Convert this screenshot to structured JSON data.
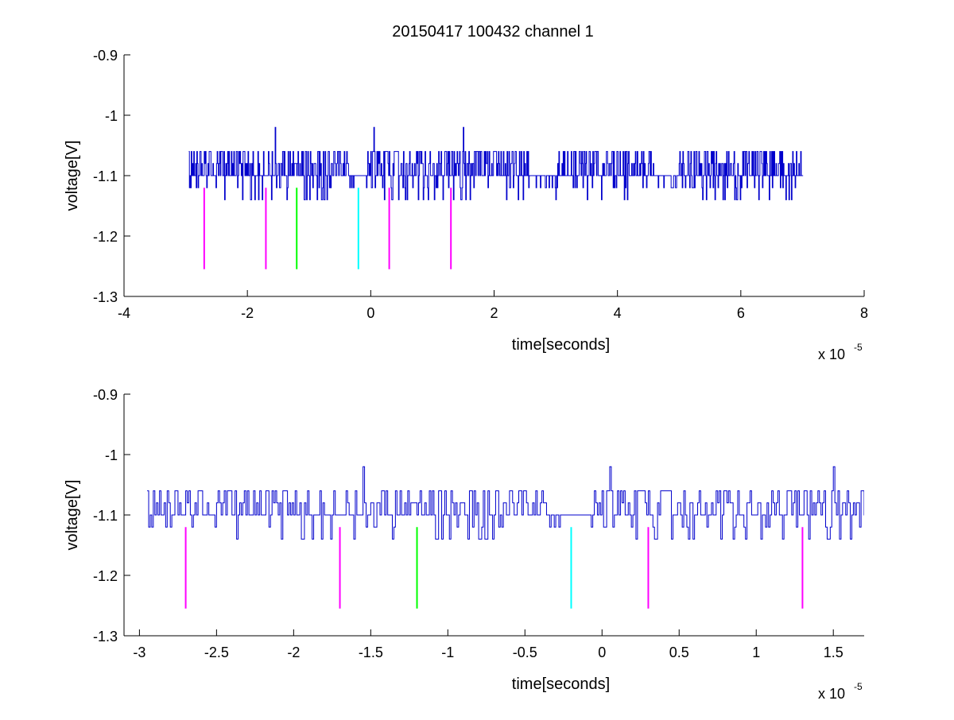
{
  "figure": {
    "title": "20150417 100432 channel 1"
  },
  "chart_data": [
    {
      "type": "line",
      "title": "20150417 100432 channel 1",
      "xlabel": "time[seconds]",
      "ylabel": "voltage[V]",
      "x_multiplier": {
        "base": "x 10",
        "exponent": "-5"
      },
      "xlim": [
        -4,
        8
      ],
      "ylim": [
        -1.3,
        -0.9
      ],
      "xticks": [
        -4,
        -2,
        0,
        2,
        4,
        6,
        8
      ],
      "xtick_labels": [
        "-4",
        "-2",
        "0",
        "2",
        "4",
        "6",
        "8"
      ],
      "yticks": [
        -1.3,
        -1.2,
        -1.1,
        -1.0,
        -0.9
      ],
      "ytick_labels": [
        "-1.3",
        "-1.2",
        "-1.1",
        "-1",
        "-0.9"
      ],
      "grid": false,
      "trace": {
        "color": "#0000cc",
        "x_start": -2.95,
        "x_end": 7.0,
        "levels": [
          -1.06,
          -1.08,
          -1.1,
          -1.12,
          -1.14
        ],
        "baseline": -1.1,
        "spikes": [
          {
            "x": -1.55,
            "y": -1.02
          },
          {
            "x": 0.05,
            "y": -1.02
          },
          {
            "x": 1.5,
            "y": -1.02
          }
        ]
      },
      "markers": [
        {
          "x": -2.7,
          "y_top": -1.12,
          "y_bottom": -1.255,
          "color": "#ff00ff"
        },
        {
          "x": -1.7,
          "y_top": -1.12,
          "y_bottom": -1.255,
          "color": "#ff00ff"
        },
        {
          "x": -1.2,
          "y_top": -1.12,
          "y_bottom": -1.255,
          "color": "#00ff00"
        },
        {
          "x": -0.2,
          "y_top": -1.12,
          "y_bottom": -1.255,
          "color": "#00ffff"
        },
        {
          "x": 0.3,
          "y_top": -1.12,
          "y_bottom": -1.255,
          "color": "#ff00ff"
        },
        {
          "x": 1.3,
          "y_top": -1.12,
          "y_bottom": -1.255,
          "color": "#ff00ff"
        }
      ]
    },
    {
      "type": "line",
      "title": "",
      "xlabel": "time[seconds]",
      "ylabel": "voltage[V]",
      "x_multiplier": {
        "base": "x 10",
        "exponent": "-5"
      },
      "xlim": [
        -3.1,
        1.7
      ],
      "ylim": [
        -1.3,
        -0.9
      ],
      "xticks": [
        -3,
        -2.5,
        -2,
        -1.5,
        -1,
        -0.5,
        0,
        0.5,
        1,
        1.5
      ],
      "xtick_labels": [
        "-3",
        "-2.5",
        "-2",
        "-1.5",
        "-1",
        "-0.5",
        "0",
        "0.5",
        "1",
        "1.5"
      ],
      "yticks": [
        -1.3,
        -1.2,
        -1.1,
        -1.0,
        -0.9
      ],
      "ytick_labels": [
        "-1.3",
        "-1.2",
        "-1.1",
        "-1",
        "-0.9"
      ],
      "grid": false,
      "trace": {
        "color": "#0000cc",
        "x_start": -2.95,
        "x_end": 1.7,
        "levels": [
          -1.06,
          -1.08,
          -1.1,
          -1.12,
          -1.14
        ],
        "baseline": -1.1,
        "spikes": [
          {
            "x": -1.55,
            "y": -1.02
          },
          {
            "x": 0.05,
            "y": -1.02
          },
          {
            "x": 1.5,
            "y": -1.02
          }
        ]
      },
      "markers": [
        {
          "x": -2.7,
          "y_top": -1.12,
          "y_bottom": -1.255,
          "color": "#ff00ff"
        },
        {
          "x": -1.7,
          "y_top": -1.12,
          "y_bottom": -1.255,
          "color": "#ff00ff"
        },
        {
          "x": -1.2,
          "y_top": -1.12,
          "y_bottom": -1.255,
          "color": "#00ff00"
        },
        {
          "x": -0.2,
          "y_top": -1.12,
          "y_bottom": -1.255,
          "color": "#00ffff"
        },
        {
          "x": 0.3,
          "y_top": -1.12,
          "y_bottom": -1.255,
          "color": "#ff00ff"
        },
        {
          "x": 1.3,
          "y_top": -1.12,
          "y_bottom": -1.255,
          "color": "#ff00ff"
        }
      ]
    }
  ]
}
